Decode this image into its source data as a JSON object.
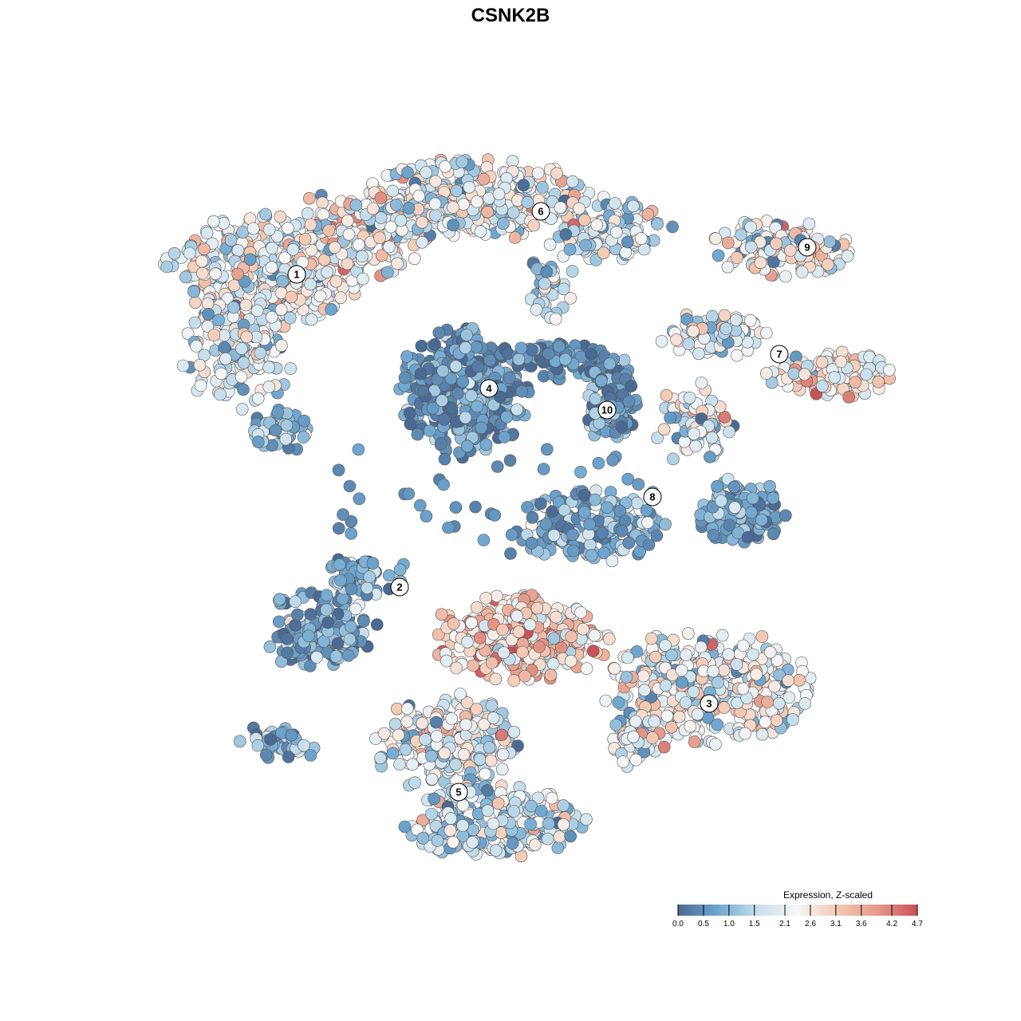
{
  "chart_data": {
    "type": "scatter",
    "title": "CSNK2B",
    "legend": {
      "title": "Expression, Z-scaled",
      "ticks": [
        "0.0",
        "0.5",
        "1.0",
        "1.5",
        "2.1",
        "2.6",
        "3.1",
        "3.6",
        "4.2",
        "4.7"
      ],
      "tick_values": [
        0.0,
        0.5,
        1.0,
        1.5,
        2.1,
        2.6,
        3.1,
        3.6,
        4.2,
        4.7
      ],
      "placement": "bottom-right",
      "range": [
        0.0,
        4.7
      ]
    },
    "colorscale": [
      "#4a6a93",
      "#6ea6cf",
      "#c7dfec",
      "#f7f7f7",
      "#f3c9b3",
      "#e59a8a",
      "#c9505a"
    ],
    "marker_outline": "#555555",
    "clusters": [
      {
        "label": "1",
        "center": [
          372,
          344
        ],
        "mean_expression": 2.2
      },
      {
        "label": "2",
        "center": [
          501,
          736
        ],
        "mean_expression": 0.9
      },
      {
        "label": "3",
        "center": [
          889,
          882
        ],
        "mean_expression": 2.2
      },
      {
        "label": "4",
        "center": [
          613,
          487
        ],
        "mean_expression": 0.6
      },
      {
        "label": "5",
        "center": [
          575,
          993
        ],
        "mean_expression": 1.9
      },
      {
        "label": "6",
        "center": [
          678,
          265
        ],
        "mean_expression": 2.0
      },
      {
        "label": "7",
        "center": [
          977,
          444
        ],
        "mean_expression": 2.4
      },
      {
        "label": "8",
        "center": [
          818,
          623
        ],
        "mean_expression": 0.9
      },
      {
        "label": "9",
        "center": [
          1012,
          310
        ],
        "mean_expression": 2.1
      },
      {
        "label": "10",
        "center": [
          761,
          514
        ],
        "mean_expression": 0.8
      }
    ],
    "axes": {
      "x_visible": false,
      "y_visible": false
    },
    "grid": false
  }
}
